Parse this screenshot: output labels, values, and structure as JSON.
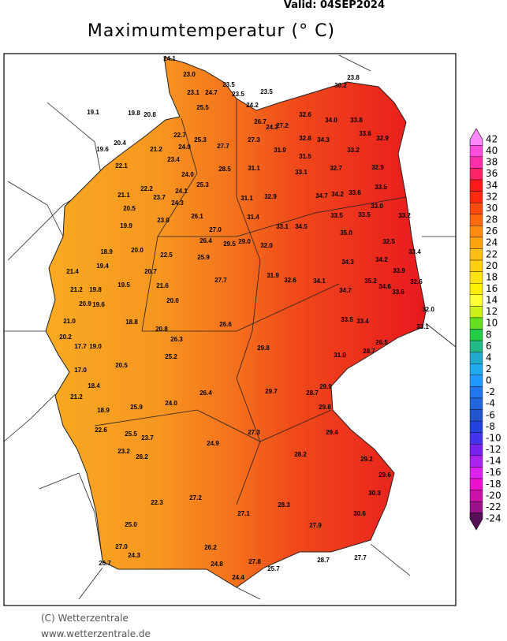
{
  "header": {
    "valid": "Valid: 04SEP2024",
    "title": "Maximumtemperatur (° C)"
  },
  "footer": {
    "copyright": "(C) Wetterzentrale",
    "url": "www.wetterzentrale.de"
  },
  "colorbar": {
    "ticks": [
      42,
      40,
      38,
      36,
      34,
      32,
      30,
      28,
      26,
      24,
      22,
      20,
      18,
      16,
      14,
      12,
      10,
      8,
      6,
      4,
      2,
      0,
      -2,
      -4,
      -6,
      -8,
      -10,
      -12,
      -14,
      -16,
      -18,
      -20,
      -22,
      -24
    ],
    "colors": [
      "#ff88ff",
      "#ff4ddb",
      "#ff2fa8",
      "#ff2468",
      "#ff1a1a",
      "#ff2a10",
      "#ff4a10",
      "#ff6a10",
      "#ff8c10",
      "#ffa410",
      "#ffbe10",
      "#ffd010",
      "#ffe010",
      "#fff000",
      "#ffff33",
      "#ccf01a",
      "#66dd22",
      "#22cc44",
      "#22bb88",
      "#22aacc",
      "#22aaee",
      "#2299ff",
      "#2277ee",
      "#2266dd",
      "#2255cc",
      "#2244dd",
      "#4433ee",
      "#7722ee",
      "#aa22ee",
      "#dd22ee",
      "#ee11cc",
      "#cc11aa",
      "#991188",
      "#551155"
    ]
  },
  "stations": [
    "24.1",
    "23.0",
    "23.5",
    "24.7",
    "23.1",
    "23.5",
    "23.5",
    "23.8",
    "30.2",
    "19.1",
    "19.8",
    "20.8",
    "25.5",
    "24.2",
    "32.6",
    "34.0",
    "33.8",
    "26.7",
    "24.2",
    "27.2",
    "22.7",
    "25.3",
    "27.3",
    "32.8",
    "34.3",
    "33.6",
    "32.9",
    "20.4",
    "19.6",
    "21.2",
    "24.0",
    "27.7",
    "31.9",
    "31.5",
    "33.2",
    "22.1",
    "23.4",
    "28.5",
    "31.1",
    "33.1",
    "32.7",
    "32.9",
    "24.0",
    "34.7",
    "34.2",
    "33.6",
    "33.5",
    "21.1",
    "22.2",
    "23.7",
    "24.1",
    "25.3",
    "31.1",
    "32.9",
    "33.0",
    "20.5",
    "24.3",
    "26.1",
    "31.4",
    "33.5",
    "33.5",
    "33.2",
    "19.9",
    "23.0",
    "27.0",
    "33.1",
    "34.5",
    "35.0",
    "32.5",
    "18.9",
    "20.0",
    "22.5",
    "26.4",
    "29.5",
    "29.0",
    "32.0",
    "34.3",
    "34.2",
    "33.4",
    "21.4",
    "19.4",
    "20.7",
    "25.9",
    "31.9",
    "33.9",
    "21.2",
    "19.8",
    "19.5",
    "21.6",
    "27.7",
    "32.6",
    "34.1",
    "35.2",
    "34.6",
    "32.6",
    "20.9",
    "19.6",
    "20.0",
    "34.7",
    "33.6",
    "32.0",
    "21.0",
    "18.8",
    "20.8",
    "26.6",
    "33.5",
    "33.4",
    "33.1",
    "20.2",
    "17.7",
    "19.0",
    "26.3",
    "26.5",
    "28.7",
    "17.0",
    "20.5",
    "25.2",
    "29.8",
    "31.0",
    "21.2",
    "18.4",
    "26.4",
    "29.7",
    "28.7",
    "18.9",
    "25.9",
    "24.0",
    "29.8",
    "29.9",
    "22.6",
    "25.5",
    "23.7",
    "27.3",
    "28.2",
    "29.4",
    "23.2",
    "26.2",
    "24.9",
    "29.2",
    "29.6",
    "30.3",
    "25.0",
    "22.3",
    "27.2",
    "27.1",
    "28.3",
    "27.9",
    "30.6",
    "27.0",
    "24.3",
    "26.2",
    "27.8",
    "28.7",
    "27.7",
    "26.7",
    "24.8",
    "25.7",
    "24.4"
  ]
}
